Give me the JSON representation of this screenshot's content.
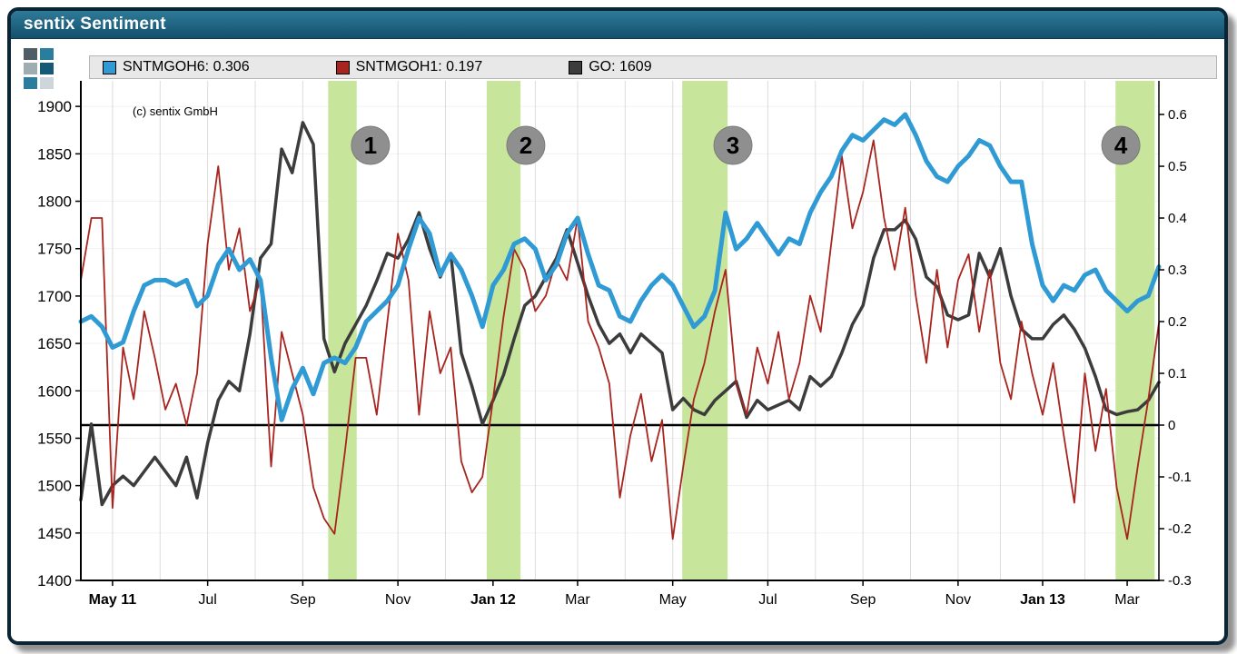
{
  "window": {
    "title": "sentix Sentiment"
  },
  "watermark": "(c) sentix GmbH",
  "legend": {
    "items": [
      {
        "label": "SNTMGOH6: 0.306",
        "color": "#2f9ad4"
      },
      {
        "label": "SNTMGOH1: 0.197",
        "color": "#a8241f"
      },
      {
        "label": "GO: 1609",
        "color": "#3c3c3c"
      }
    ]
  },
  "chart_data": {
    "type": "line",
    "title": "sentix Sentiment",
    "x_unit": "weekly observations, Apr 2011 - Apr 2013",
    "legend_position": "top",
    "grid": true,
    "band_color": "#c7e69b",
    "marker_color": "#8f8f8f",
    "zero_line_axis": "right",
    "left_axis": {
      "min": 1400,
      "max": 1927,
      "ticks": [
        1400,
        1450,
        1500,
        1550,
        1600,
        1650,
        1700,
        1750,
        1800,
        1850,
        1900
      ]
    },
    "right_axis": {
      "min": -0.3,
      "max": 0.665,
      "ticks": [
        "0.6",
        "0.5",
        "0.4",
        "0.3",
        "0.2",
        "0.1",
        "0",
        "-0.1",
        "-0.2",
        "-0.3"
      ]
    },
    "x_ticks": [
      {
        "label": "May 11",
        "week": 3,
        "bold": true
      },
      {
        "label": "Jul",
        "week": 12,
        "bold": false
      },
      {
        "label": "Sep",
        "week": 21,
        "bold": false
      },
      {
        "label": "Nov",
        "week": 30,
        "bold": false
      },
      {
        "label": "Jan 12",
        "week": 39,
        "bold": true
      },
      {
        "label": "Mar",
        "week": 47,
        "bold": false
      },
      {
        "label": "May",
        "week": 56,
        "bold": false
      },
      {
        "label": "Jul",
        "week": 65,
        "bold": false
      },
      {
        "label": "Sep",
        "week": 74,
        "bold": false
      },
      {
        "label": "Nov",
        "week": 83,
        "bold": false
      },
      {
        "label": "Jan 13",
        "week": 91,
        "bold": true
      },
      {
        "label": "Mar",
        "week": 99,
        "bold": false
      }
    ],
    "highlight_bands": [
      {
        "number": "1",
        "from_week": 23.4,
        "to_week": 26.1,
        "label_week": 27.4
      },
      {
        "number": "2",
        "from_week": 38.4,
        "to_week": 41.6,
        "label_week": 42.1
      },
      {
        "number": "3",
        "from_week": 56.9,
        "to_week": 61.2,
        "label_week": 61.7
      },
      {
        "number": "4",
        "from_week": 97.9,
        "to_week": 101.6,
        "label_week": 98.4
      }
    ],
    "series": [
      {
        "name": "SNTMGOH6",
        "axis": "right",
        "color": "#2f9ad4",
        "width": 5,
        "last_value": 0.306,
        "values": [
          0.2,
          0.21,
          0.19,
          0.15,
          0.16,
          0.22,
          0.27,
          0.28,
          0.28,
          0.27,
          0.28,
          0.23,
          0.25,
          0.31,
          0.34,
          0.3,
          0.32,
          0.28,
          0.13,
          0.01,
          0.07,
          0.11,
          0.06,
          0.12,
          0.13,
          0.12,
          0.15,
          0.2,
          0.22,
          0.24,
          0.27,
          0.34,
          0.4,
          0.37,
          0.29,
          0.33,
          0.3,
          0.25,
          0.19,
          0.27,
          0.3,
          0.35,
          0.36,
          0.34,
          0.28,
          0.31,
          0.37,
          0.4,
          0.33,
          0.27,
          0.26,
          0.21,
          0.2,
          0.24,
          0.27,
          0.29,
          0.27,
          0.23,
          0.19,
          0.21,
          0.26,
          0.41,
          0.34,
          0.36,
          0.39,
          0.36,
          0.33,
          0.36,
          0.35,
          0.41,
          0.45,
          0.48,
          0.53,
          0.56,
          0.55,
          0.57,
          0.59,
          0.58,
          0.6,
          0.56,
          0.51,
          0.48,
          0.47,
          0.5,
          0.52,
          0.55,
          0.54,
          0.5,
          0.47,
          0.47,
          0.35,
          0.27,
          0.24,
          0.27,
          0.26,
          0.29,
          0.3,
          0.26,
          0.24,
          0.22,
          0.24,
          0.25,
          0.306
        ]
      },
      {
        "name": "SNTMGOH1",
        "axis": "right",
        "color": "#a8241f",
        "width": 1.8,
        "last_value": 0.197,
        "values": [
          0.28,
          0.4,
          0.4,
          -0.16,
          0.15,
          0.05,
          0.22,
          0.13,
          0.03,
          0.08,
          0.0,
          0.1,
          0.35,
          0.5,
          0.3,
          0.38,
          0.22,
          0.28,
          -0.08,
          0.18,
          0.1,
          0.02,
          -0.12,
          -0.18,
          -0.21,
          -0.05,
          0.13,
          0.13,
          0.02,
          0.2,
          0.37,
          0.28,
          0.02,
          0.22,
          0.1,
          0.15,
          -0.07,
          -0.13,
          -0.1,
          0.05,
          0.21,
          0.34,
          0.3,
          0.22,
          0.25,
          0.32,
          0.28,
          0.4,
          0.2,
          0.15,
          0.08,
          -0.14,
          -0.02,
          0.06,
          -0.07,
          0.01,
          -0.22,
          -0.08,
          0.05,
          0.12,
          0.22,
          0.3,
          0.08,
          0.02,
          0.15,
          0.08,
          0.18,
          0.05,
          0.12,
          0.25,
          0.18,
          0.35,
          0.52,
          0.38,
          0.45,
          0.55,
          0.4,
          0.3,
          0.42,
          0.25,
          0.12,
          0.3,
          0.15,
          0.28,
          0.33,
          0.18,
          0.3,
          0.12,
          0.05,
          0.2,
          0.1,
          0.02,
          0.12,
          -0.02,
          -0.15,
          0.1,
          -0.05,
          0.07,
          -0.12,
          -0.22,
          -0.08,
          0.05,
          0.197
        ]
      },
      {
        "name": "GO",
        "axis": "left",
        "color": "#3c3c3c",
        "width": 3.5,
        "last_value": 1609,
        "values": [
          1485,
          1565,
          1480,
          1500,
          1510,
          1500,
          1515,
          1530,
          1515,
          1500,
          1530,
          1487,
          1545,
          1590,
          1610,
          1600,
          1660,
          1740,
          1755,
          1855,
          1830,
          1883,
          1860,
          1655,
          1620,
          1650,
          1670,
          1690,
          1716,
          1745,
          1740,
          1760,
          1788,
          1750,
          1720,
          1745,
          1640,
          1605,
          1565,
          1590,
          1617,
          1655,
          1690,
          1700,
          1720,
          1740,
          1770,
          1735,
          1700,
          1670,
          1650,
          1660,
          1640,
          1660,
          1650,
          1640,
          1580,
          1592,
          1580,
          1575,
          1590,
          1600,
          1610,
          1572,
          1590,
          1580,
          1585,
          1590,
          1580,
          1615,
          1605,
          1615,
          1640,
          1670,
          1690,
          1740,
          1770,
          1770,
          1780,
          1760,
          1720,
          1710,
          1680,
          1675,
          1680,
          1745,
          1720,
          1750,
          1700,
          1665,
          1655,
          1655,
          1670,
          1680,
          1665,
          1645,
          1615,
          1580,
          1575,
          1578,
          1580,
          1590,
          1609
        ]
      }
    ]
  }
}
